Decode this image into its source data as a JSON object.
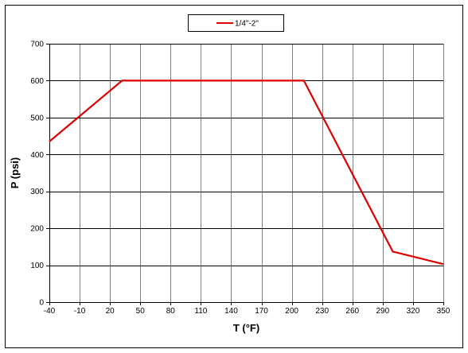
{
  "chart_data": {
    "type": "line",
    "title": "",
    "xlabel": "T (°F)",
    "ylabel": "P (psi)",
    "xlim": [
      -40,
      350
    ],
    "ylim": [
      0,
      700
    ],
    "x_ticks": [
      -40,
      -10,
      20,
      50,
      80,
      110,
      140,
      170,
      200,
      230,
      260,
      290,
      320,
      350
    ],
    "y_ticks": [
      0,
      100,
      200,
      300,
      400,
      500,
      600,
      700
    ],
    "grid": true,
    "legend": "top-center",
    "series": [
      {
        "name": "1/4\"-2\"",
        "color": "#dd0000",
        "x": [
          -40,
          32,
          212,
          300,
          350
        ],
        "y": [
          435,
          600,
          600,
          137,
          103
        ]
      }
    ]
  }
}
